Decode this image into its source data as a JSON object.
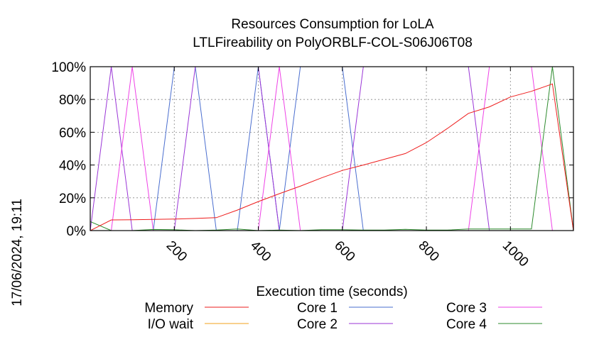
{
  "chart_data": {
    "type": "line",
    "title": "Resources Consumption for LoLA",
    "subtitle": "LTLFireability on PolyORBLF-COL-S06J06T08",
    "xlabel": "Execution time (seconds)",
    "ylabel": "",
    "timestamp": "17/06/2024, 19:11",
    "xlim": [
      0,
      1150
    ],
    "ylim": [
      0,
      100
    ],
    "x_ticks": [
      {
        "value": 200,
        "label": "200"
      },
      {
        "value": 400,
        "label": "400"
      },
      {
        "value": 600,
        "label": "600"
      },
      {
        "value": 800,
        "label": "800"
      },
      {
        "value": 1000,
        "label": "1000"
      }
    ],
    "y_ticks": [
      {
        "value": 0,
        "label": "0%"
      },
      {
        "value": 20,
        "label": "20%"
      },
      {
        "value": 40,
        "label": "40%"
      },
      {
        "value": 60,
        "label": "60%"
      },
      {
        "value": 80,
        "label": "80%"
      },
      {
        "value": 100,
        "label": "100%"
      }
    ],
    "grid": true,
    "legend_position": "bottom",
    "series": [
      {
        "name": "Memory",
        "color": "#ee1c1c",
        "x": [
          0,
          50,
          100,
          150,
          200,
          250,
          300,
          350,
          400,
          450,
          500,
          550,
          600,
          650,
          700,
          750,
          800,
          850,
          900,
          950,
          1000,
          1050,
          1100,
          1150
        ],
        "y": [
          0,
          6.5,
          6.6,
          6.8,
          7,
          7.4,
          7.9,
          12.5,
          17.7,
          22.5,
          27.1,
          32.1,
          36.7,
          40,
          43.5,
          47,
          53.7,
          62.3,
          71.5,
          75.5,
          81.5,
          85,
          89.5,
          0
        ]
      },
      {
        "name": "I/O wait",
        "color": "#f0a01e",
        "x": [
          0,
          1150
        ],
        "y": [
          0,
          0
        ]
      },
      {
        "name": "Core 1",
        "color": "#4a6ecf",
        "x": [
          0,
          150,
          200,
          250,
          300,
          350,
          400,
          450,
          500,
          550,
          600,
          650,
          700,
          750,
          800,
          850,
          900,
          950,
          1000,
          1050,
          1100,
          1150
        ],
        "y": [
          0,
          0,
          100,
          100,
          0,
          0,
          100,
          0,
          100,
          100,
          100,
          0,
          0,
          0,
          0,
          0,
          0,
          0,
          0,
          0,
          0,
          0
        ]
      },
      {
        "name": "Core 2",
        "color": "#9a35d6",
        "x": [
          0,
          50,
          100,
          150,
          200,
          250,
          300,
          350,
          400,
          450,
          500,
          550,
          600,
          650,
          700,
          750,
          800,
          850,
          900,
          950,
          1000,
          1050,
          1100,
          1150
        ],
        "y": [
          0,
          100,
          0,
          0,
          0,
          100,
          100,
          100,
          100,
          0,
          0,
          0,
          0,
          100,
          100,
          100,
          100,
          100,
          100,
          0,
          0,
          0,
          0,
          0
        ]
      },
      {
        "name": "Core 3",
        "color": "#ee42e6",
        "x": [
          0,
          50,
          100,
          150,
          200,
          250,
          300,
          350,
          400,
          450,
          500,
          550,
          600,
          650,
          700,
          750,
          800,
          850,
          900,
          950,
          1000,
          1050,
          1100,
          1150
        ],
        "y": [
          0,
          0,
          100,
          0,
          0,
          0,
          0,
          0,
          0,
          100,
          0,
          0,
          0,
          0,
          0,
          0,
          0,
          0,
          0,
          100,
          100,
          100,
          0,
          0
        ]
      },
      {
        "name": "Core 4",
        "color": "#2e8b2e",
        "x": [
          0,
          50,
          100,
          150,
          200,
          250,
          300,
          350,
          400,
          450,
          500,
          550,
          600,
          650,
          700,
          750,
          800,
          850,
          900,
          950,
          1000,
          1050,
          1100,
          1150
        ],
        "y": [
          5.5,
          0,
          0,
          0.7,
          0.5,
          0,
          0.3,
          1,
          0,
          0.3,
          0,
          0.5,
          0.5,
          0.3,
          0.3,
          0.8,
          0.3,
          0.3,
          1,
          1,
          1,
          1,
          100,
          0
        ]
      }
    ]
  }
}
